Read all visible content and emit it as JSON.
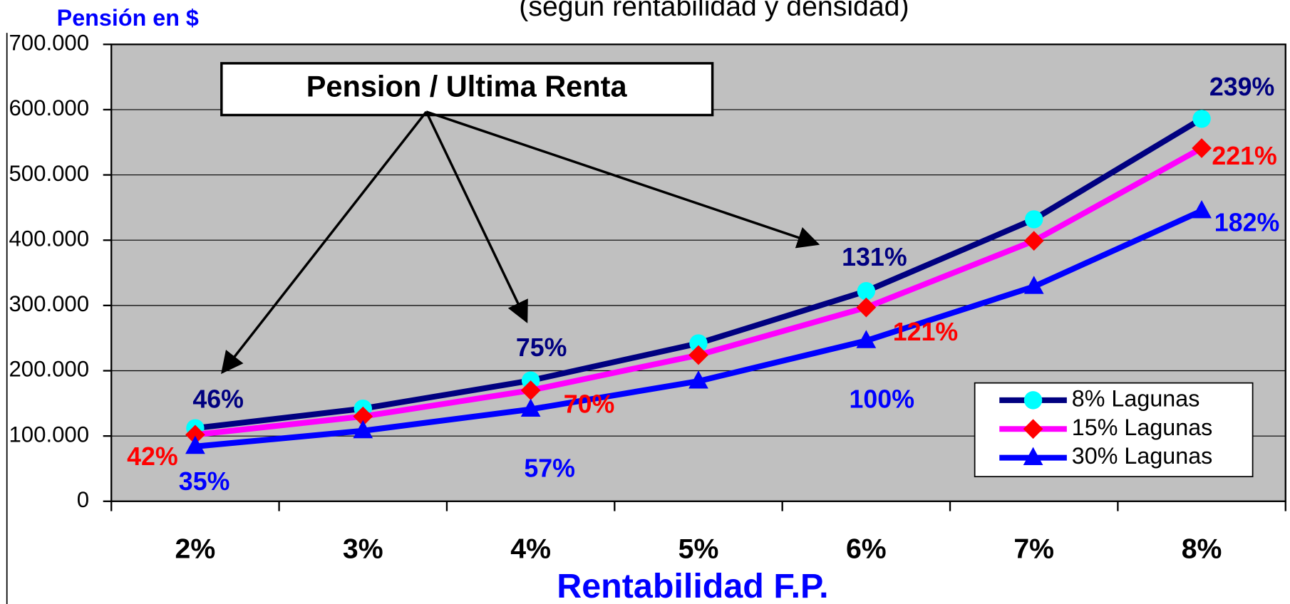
{
  "chart_data": {
    "type": "line",
    "title": "(según rentabilidad y densidad)",
    "y_label": "Pensión en $",
    "x_label": "Rentabilidad F.P.",
    "categories": [
      "2%",
      "3%",
      "4%",
      "5%",
      "6%",
      "7%",
      "8%"
    ],
    "series": [
      {
        "name": "8% Lagunas",
        "color": "#000080",
        "marker_color": "#00ffff",
        "marker": "circle",
        "label_color": "#000080",
        "values": [
          112000,
          142000,
          185000,
          242000,
          322000,
          432000,
          586000
        ]
      },
      {
        "name": "15% Lagunas",
        "color": "#ff00ff",
        "marker_color": "#ff0000",
        "marker": "diamond",
        "label_color": "#ff0000",
        "values": [
          102000,
          130000,
          170000,
          224000,
          297000,
          399000,
          541000
        ]
      },
      {
        "name": "30% Lagunas",
        "color": "#0000ff",
        "marker_color": "#0000ff",
        "marker": "triangle",
        "label_color": "#0000ff",
        "values": [
          84000,
          108000,
          141000,
          184000,
          246000,
          329000,
          445000
        ]
      }
    ],
    "annotations": [
      {
        "series": 0,
        "texts": [
          "46%",
          "75%",
          "131%",
          "239%"
        ]
      },
      {
        "series": 1,
        "texts": [
          "42%",
          "70%",
          "121%",
          "221%"
        ]
      },
      {
        "series": 2,
        "texts": [
          "35%",
          "57%",
          "100%",
          "182%"
        ]
      }
    ],
    "callout": "Pension / Ultima Renta",
    "ylim": [
      0,
      700000
    ],
    "yticks": [
      0,
      {
        "value": 100000,
        "label": "100.000"
      },
      {
        "value": 200000,
        "label": "200.000"
      },
      {
        "value": 300000,
        "label": "300.000"
      },
      {
        "value": 400000,
        "label": "400.000"
      },
      {
        "value": 500000,
        "label": "500.000"
      },
      {
        "value": 600000,
        "label": "600.000"
      },
      {
        "value": 700000,
        "label": "700.000"
      }
    ],
    "grid": true,
    "legend": "lower right",
    "plot_color": "#c0c0c0"
  }
}
